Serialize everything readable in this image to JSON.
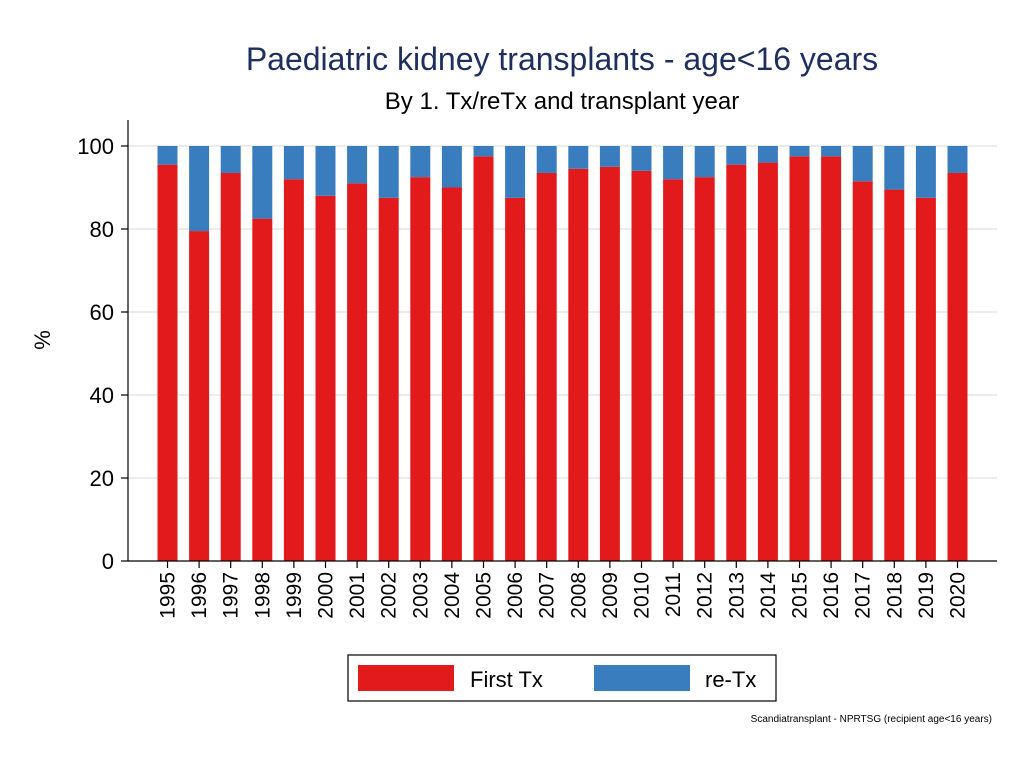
{
  "chart_data": {
    "type": "bar",
    "stacked": true,
    "title": "Paediatric kidney transplants - age<16 years",
    "subtitle": "By 1. Tx/reTx and transplant year",
    "xlabel": "",
    "ylabel": "%",
    "ylim": [
      0,
      100
    ],
    "yticks": [
      0,
      20,
      40,
      60,
      80,
      100
    ],
    "grid": true,
    "legend_position": "bottom",
    "categories": [
      "1995",
      "1996",
      "1997",
      "1998",
      "1999",
      "2000",
      "2001",
      "2002",
      "2003",
      "2004",
      "2005",
      "2006",
      "2007",
      "2008",
      "2009",
      "2010",
      "2011",
      "2012",
      "2013",
      "2014",
      "2015",
      "2016",
      "2017",
      "2018",
      "2019",
      "2020"
    ],
    "series": [
      {
        "name": "First Tx",
        "color": "#e31a1c",
        "values": [
          95.5,
          79.5,
          93.5,
          82.5,
          92,
          88,
          91,
          87.5,
          92.5,
          90,
          97.5,
          87.5,
          93.5,
          94.5,
          95,
          94,
          92,
          92.5,
          95.5,
          96,
          97.5,
          97.5,
          91.5,
          89.5,
          87.5,
          93.5
        ]
      },
      {
        "name": "re-Tx",
        "color": "#3a7dbf",
        "values": [
          4.5,
          20.5,
          6.5,
          17.5,
          8,
          12,
          9,
          12.5,
          7.5,
          10,
          2.5,
          12.5,
          6.5,
          5.5,
          5,
          6,
          8,
          7.5,
          4.5,
          4,
          2.5,
          2.5,
          8.5,
          10.5,
          12.5,
          6.5
        ]
      }
    ],
    "note": "Scandiatransplant - NPRTSG (recipient age<16 years)"
  }
}
